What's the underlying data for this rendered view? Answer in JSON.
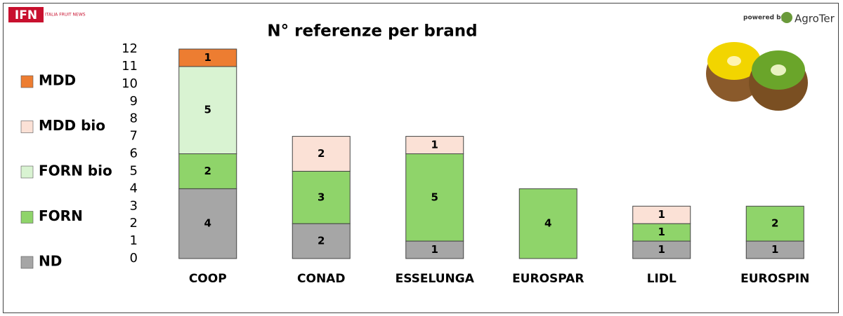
{
  "header": {
    "logo": "IFN",
    "logo_subtitle": "ITALIA FRUIT NEWS",
    "powered_by": "powered by",
    "sponsor": "AgroTer"
  },
  "chart_data": {
    "type": "stacked-bar",
    "title": "N° referenze per brand",
    "categories": [
      "COOP",
      "CONAD",
      "ESSELUNGA",
      "EUROSPAR",
      "LIDL",
      "EUROSPIN"
    ],
    "series": [
      {
        "name": "ND",
        "color": "#a6a6a6",
        "values": [
          4,
          2,
          1,
          null,
          1,
          1
        ]
      },
      {
        "name": "FORN",
        "color": "#8fd46a",
        "values": [
          2,
          3,
          5,
          4,
          1,
          2
        ]
      },
      {
        "name": "FORN bio",
        "color": "#d9f3d2",
        "values": [
          5,
          null,
          null,
          null,
          null,
          null
        ]
      },
      {
        "name": "MDD bio",
        "color": "#fbe1d6",
        "values": [
          null,
          2,
          1,
          null,
          1,
          null
        ]
      },
      {
        "name": "MDD",
        "color": "#ed7d31",
        "values": [
          1,
          null,
          null,
          null,
          null,
          null
        ]
      }
    ],
    "ylim": [
      0,
      12
    ],
    "yticks": [
      0,
      1,
      2,
      3,
      4,
      5,
      6,
      7,
      8,
      9,
      10,
      11,
      12
    ],
    "grid": false,
    "legend": "left"
  }
}
